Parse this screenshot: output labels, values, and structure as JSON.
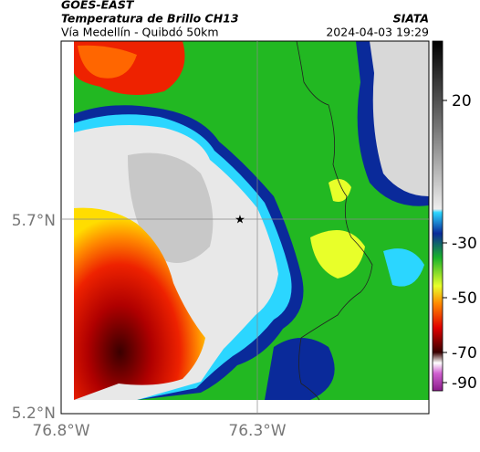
{
  "header": {
    "satellite": "GOES-EAST",
    "product": "Temperatura de Brillo CH13",
    "region": "Vía Medellín - Quibdó 50km",
    "source": "SIATA",
    "datetime": "2024-04-03 19:29"
  },
  "map": {
    "lat_labels": [
      "5.7°N",
      "5.2°N"
    ],
    "lon_labels": [
      "76.8°W",
      "76.3°W"
    ]
  },
  "colorbar": {
    "labels": [
      "20",
      "-30",
      "-50",
      "-70",
      "-90"
    ]
  }
}
